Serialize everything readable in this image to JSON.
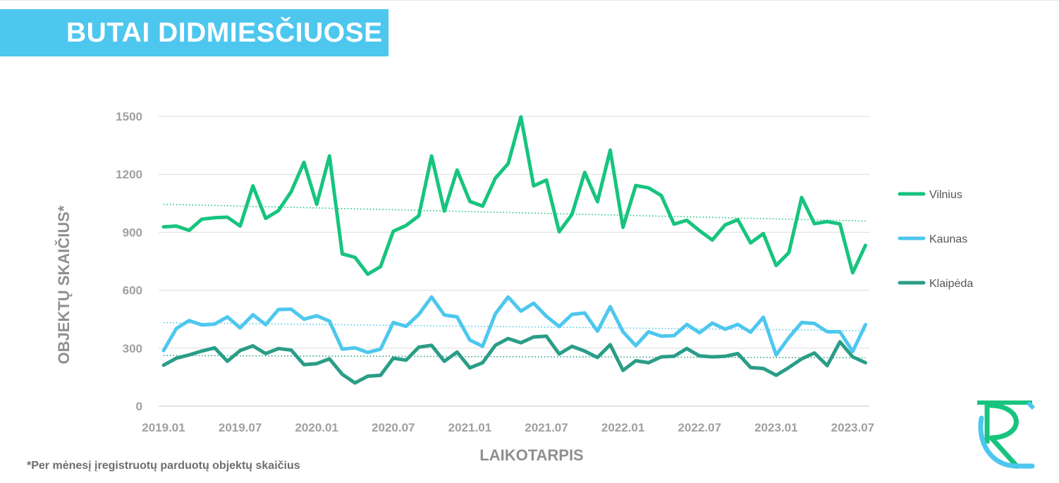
{
  "title": "BUTAI DIDMIESČIUOSE",
  "footnote": "*Per mėnesį įregistruotų parduotų objektų skaičius",
  "chart_data": {
    "type": "line",
    "xlabel": "LAIKOTARPIS",
    "ylabel": "OBJEKTŲ SKAIČIUS*",
    "ylim": [
      0,
      1500
    ],
    "yticks": [
      0,
      300,
      600,
      900,
      1200,
      1500
    ],
    "xtick_labels": [
      "2019.01",
      "2019.07",
      "2020.01",
      "2020.07",
      "2021.01",
      "2021.07",
      "2022.01",
      "2022.07",
      "2023.01",
      "2023.07"
    ],
    "x_start": "2019.01",
    "x_end": "2023.08",
    "grid": true,
    "legend_position": "right",
    "trendlines": true,
    "series": [
      {
        "name": "Vilnius",
        "color": "#17c47e",
        "values": [
          928,
          932,
          910,
          968,
          975,
          978,
          932,
          1140,
          972,
          1012,
          1110,
          1262,
          1045,
          1295,
          788,
          770,
          683,
          722,
          905,
          935,
          985,
          1295,
          1010,
          1222,
          1060,
          1035,
          1180,
          1255,
          1497,
          1140,
          1170,
          903,
          992,
          1210,
          1058,
          1325,
          925,
          1142,
          1130,
          1090,
          942,
          962,
          908,
          860,
          938,
          965,
          845,
          893,
          728,
          795,
          1080,
          945,
          955,
          943,
          690,
          832
        ],
        "trend": [
          1045,
          958
        ]
      },
      {
        "name": "Kaunas",
        "color": "#4dc7ee",
        "values": [
          288,
          402,
          443,
          420,
          425,
          462,
          405,
          473,
          422,
          500,
          502,
          450,
          468,
          440,
          295,
          302,
          278,
          295,
          433,
          413,
          475,
          565,
          472,
          462,
          342,
          310,
          478,
          565,
          492,
          533,
          465,
          412,
          475,
          482,
          388,
          515,
          385,
          313,
          385,
          362,
          365,
          423,
          380,
          430,
          398,
          423,
          383,
          460,
          265,
          355,
          433,
          428,
          385,
          385,
          283,
          422
        ],
        "trend": [
          432,
          390
        ]
      },
      {
        "name": "Klaipėda",
        "color": "#2a9d87",
        "values": [
          212,
          248,
          265,
          285,
          302,
          232,
          288,
          312,
          272,
          298,
          290,
          215,
          220,
          245,
          165,
          120,
          155,
          160,
          248,
          238,
          305,
          315,
          232,
          280,
          198,
          225,
          315,
          350,
          328,
          358,
          362,
          270,
          310,
          285,
          252,
          318,
          185,
          235,
          225,
          255,
          258,
          298,
          260,
          255,
          258,
          272,
          200,
          195,
          160,
          200,
          245,
          275,
          210,
          333,
          255,
          225
        ],
        "trend": [
          262,
          250
        ]
      }
    ]
  }
}
